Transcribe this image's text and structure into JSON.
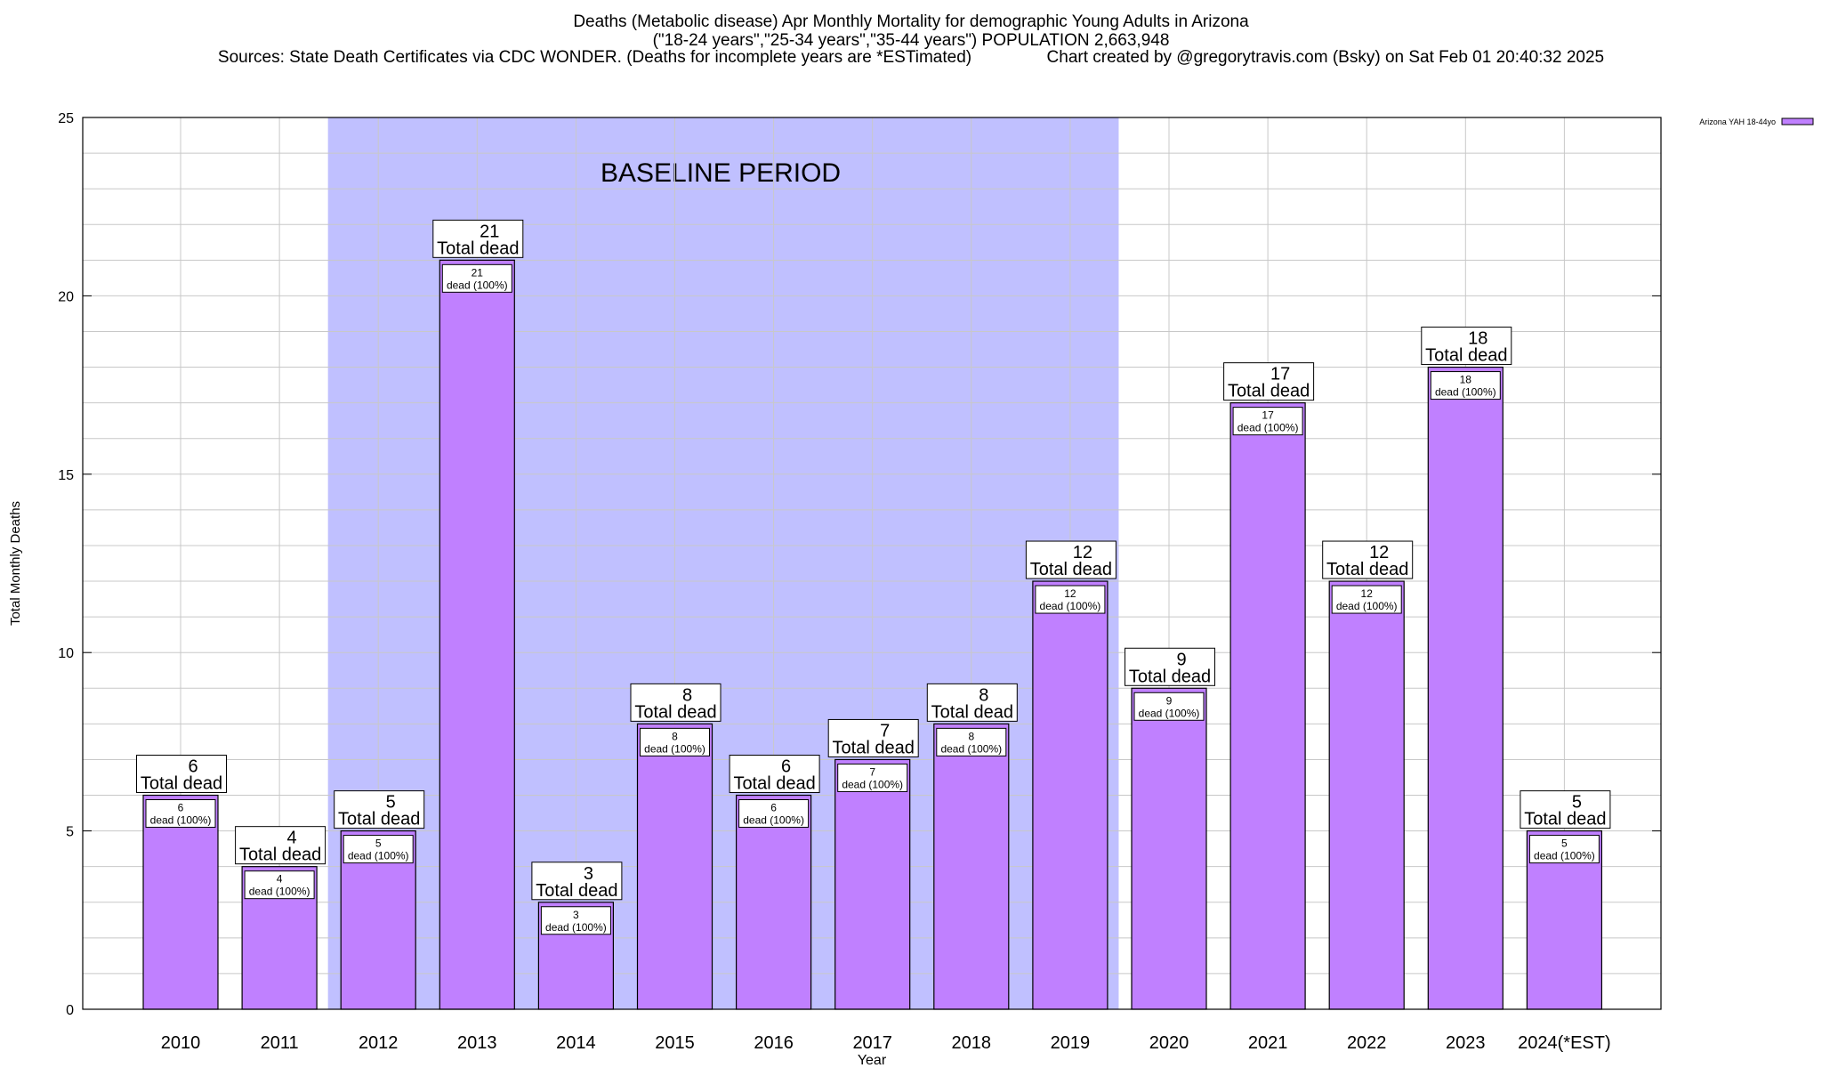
{
  "header": {
    "line1": "Deaths (Metabolic disease) Apr Monthly Mortality for demographic Young Adults in Arizona",
    "line2": "(\"18-24 years\",\"25-34 years\",\"35-44 years\") POPULATION 2,663,948",
    "line3": "Sources: State Death Certificates via CDC WONDER. (Deaths for incomplete years are *ESTimated)                Chart created by @gregorytravis.com (Bsky) on Sat Feb 01 20:40:32 2025"
  },
  "chart_data": {
    "type": "bar",
    "xlabel": "Year",
    "ylabel": "Total Monthly Deaths",
    "ylim": [
      0,
      25
    ],
    "yticks": [
      0,
      5,
      10,
      15,
      20,
      25
    ],
    "grid": true,
    "legend": {
      "position": "top-right",
      "label": "Arizona YAH 18-44yo",
      "color": "#c080ff"
    },
    "categories": [
      "2010",
      "2011",
      "2012",
      "2013",
      "2014",
      "2015",
      "2016",
      "2017",
      "2018",
      "2019",
      "2020",
      "2021",
      "2022",
      "2023",
      "2024(*EST)"
    ],
    "values": [
      6,
      4,
      5,
      21,
      3,
      8,
      6,
      7,
      8,
      12,
      9,
      17,
      12,
      18,
      5
    ],
    "total_label": "Total dead",
    "inner_label": "dead (100%)",
    "baseline": {
      "label": "BASELINE PERIOD",
      "from": "2012",
      "to": "2019",
      "color": "#c0c0ff"
    },
    "bar_color": "#c080ff"
  }
}
